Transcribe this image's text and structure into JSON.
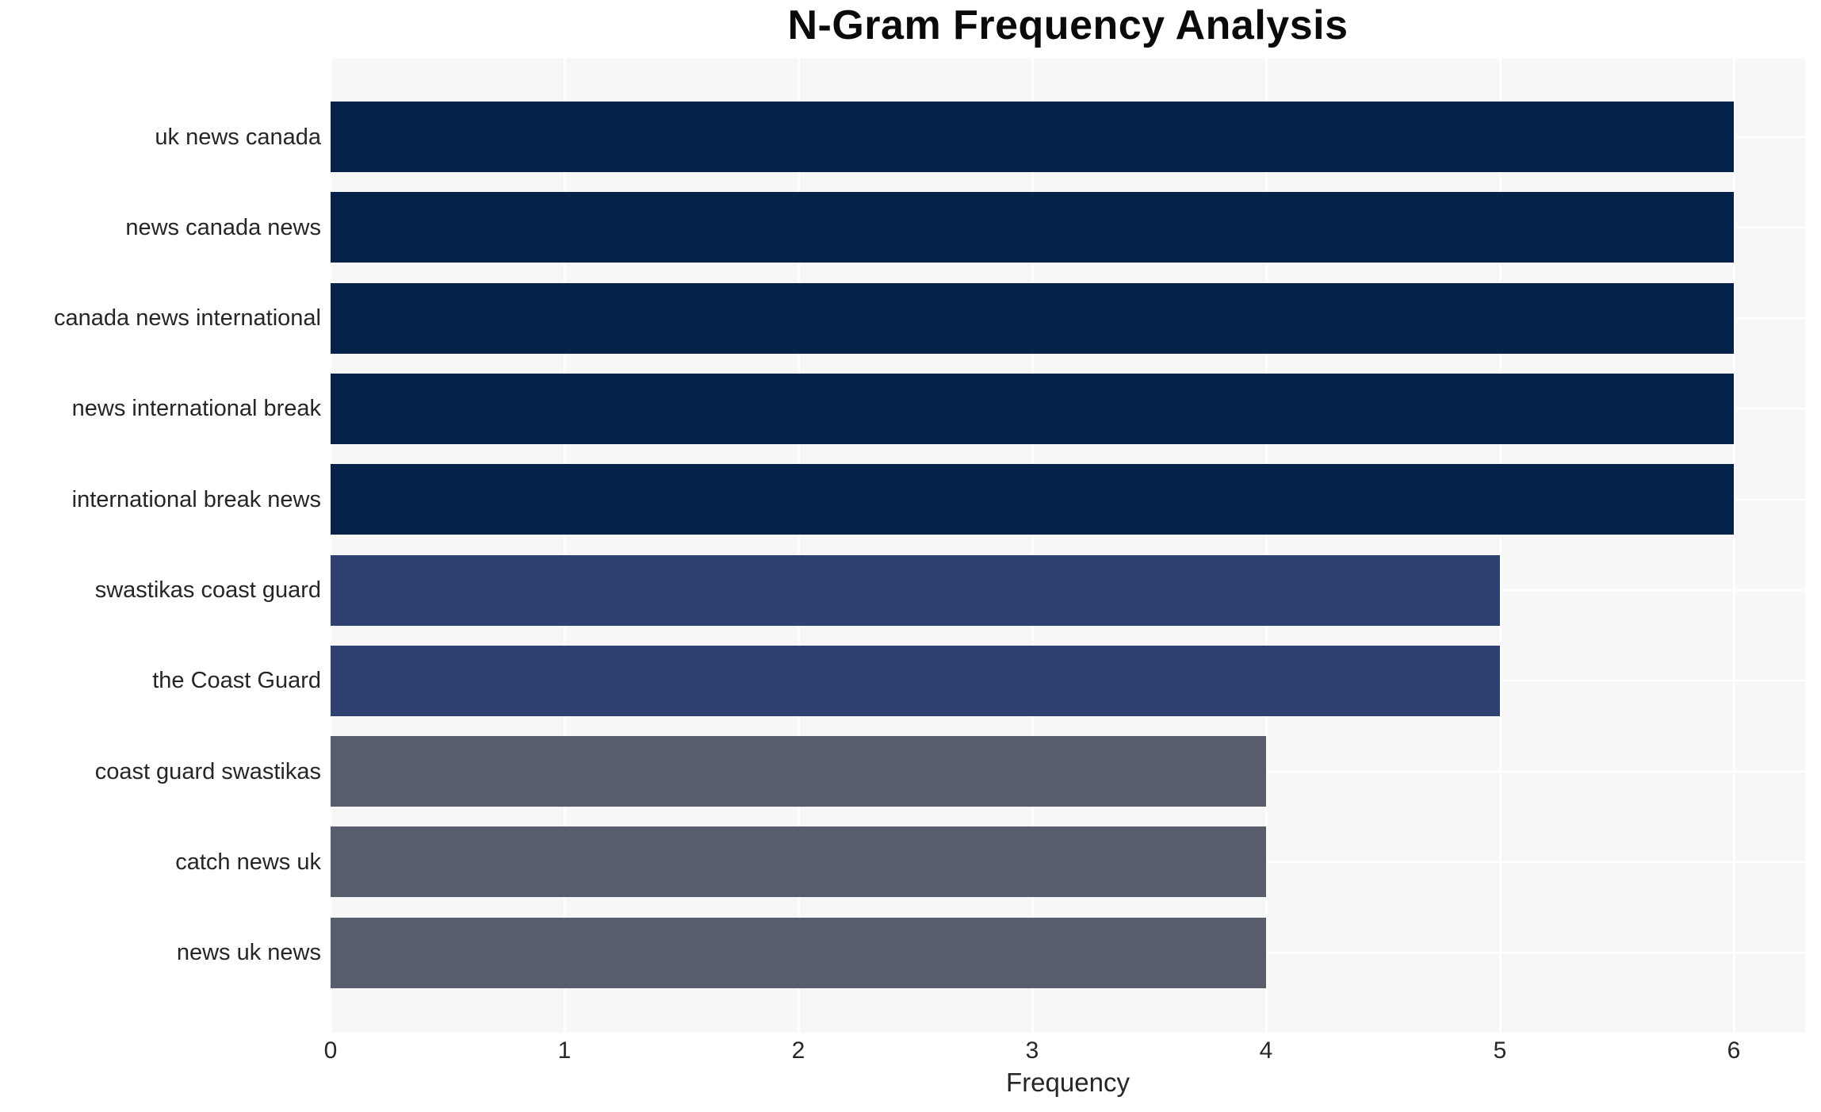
{
  "chart_data": {
    "type": "bar",
    "orientation": "horizontal",
    "title": "N-Gram Frequency Analysis",
    "xlabel": "Frequency",
    "ylabel": "",
    "categories": [
      "uk news canada",
      "news canada news",
      "canada news international",
      "news international break",
      "international break news",
      "swastikas coast guard",
      "the Coast Guard",
      "coast guard swastikas",
      "catch news uk",
      "news uk news"
    ],
    "values": [
      6,
      6,
      6,
      6,
      6,
      5,
      5,
      4,
      4,
      4
    ],
    "bar_colors": [
      "#04224a",
      "#04224a",
      "#04224a",
      "#04224a",
      "#04224a",
      "#2e4170",
      "#2e4170",
      "#575d6d",
      "#575d6d",
      "#575d6d"
    ],
    "xticks": [
      "0",
      "1",
      "2",
      "3",
      "4",
      "5",
      "6"
    ],
    "xlim": [
      0,
      6.3
    ],
    "grid": true,
    "legend": false,
    "colors": {
      "figure_bg": "#ffffff",
      "plot_bg": "#f7f7f7",
      "grid": "#ffffff",
      "title_text": "#0a0a0a",
      "axis_text": "#262626",
      "freq_6": "#04224a",
      "freq_5": "#2e4170",
      "freq_4": "#575d6d"
    }
  }
}
